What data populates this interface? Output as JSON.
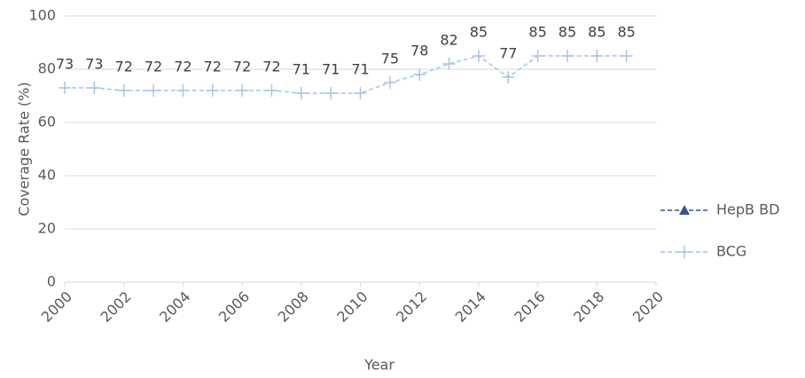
{
  "chart_data": {
    "type": "line",
    "x_label": "Year",
    "y_label": "Coverage Rate (%)",
    "x": [
      2000,
      2001,
      2002,
      2003,
      2004,
      2005,
      2006,
      2007,
      2008,
      2009,
      2010,
      2011,
      2012,
      2013,
      2014,
      2015,
      2016,
      2017,
      2018,
      2019
    ],
    "series": [
      {
        "name": "HepB BD",
        "color": "#2f5597",
        "marker": "triangle",
        "values": [
          null,
          null,
          null,
          null,
          null,
          null,
          null,
          null,
          null,
          null,
          null,
          null,
          null,
          null,
          null,
          null,
          null,
          null,
          null,
          null
        ]
      },
      {
        "name": "BCG",
        "color": "#a9c4e8",
        "marker": "plus",
        "values": [
          73,
          73,
          72,
          72,
          72,
          72,
          72,
          72,
          71,
          71,
          71,
          75,
          78,
          82,
          85,
          77,
          85,
          85,
          85,
          85
        ]
      }
    ],
    "xlim": [
      2000,
      2020
    ],
    "xticks": [
      2000,
      2002,
      2004,
      2006,
      2008,
      2010,
      2012,
      2014,
      2016,
      2018,
      2020
    ],
    "ylim": [
      0,
      100
    ],
    "yticks": [
      0,
      20,
      40,
      60,
      80,
      100
    ],
    "grid": true,
    "legend": "right",
    "data_labels": true
  }
}
